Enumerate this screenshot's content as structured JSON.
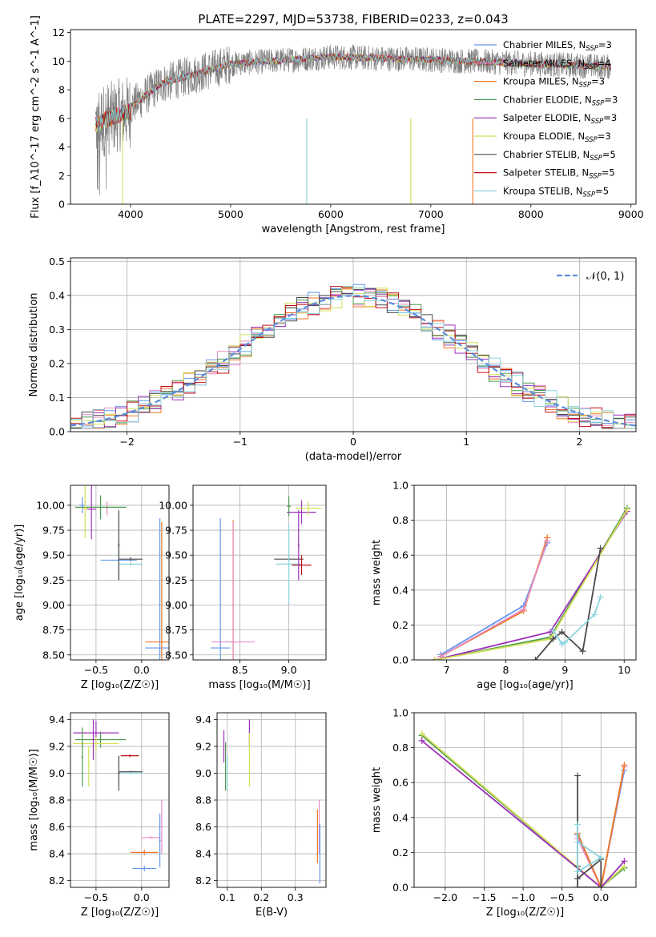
{
  "colors": {
    "chabrier_miles": "#6495ed",
    "salpeter_miles": "#e58cc4",
    "kroupa_miles": "#ee7623",
    "chabrier_elodie": "#4e9a4e",
    "salpeter_elodie": "#9b30b8",
    "kroupa_elodie": "#d4e157",
    "chabrier_stelib": "#4a4a4a",
    "salpeter_stelib": "#c0101a",
    "kroupa_stelib": "#8ad4de",
    "normal": "#5b8ddc"
  },
  "legend_spectrum": [
    {
      "key": "chabrier_miles",
      "label": "Chabrier MILES, N",
      "sub": "SSP",
      "tail": "=3"
    },
    {
      "key": "salpeter_miles",
      "label": "Salpeter MILES, N",
      "sub": "SSP",
      "tail": "=4"
    },
    {
      "key": "kroupa_miles",
      "label": "Kroupa MILES, N",
      "sub": "SSP",
      "tail": "=3"
    },
    {
      "key": "chabrier_elodie",
      "label": "Chabrier ELODIE, N",
      "sub": "SSP",
      "tail": "=3"
    },
    {
      "key": "salpeter_elodie",
      "label": "Salpeter ELODIE, N",
      "sub": "SSP",
      "tail": "=3"
    },
    {
      "key": "kroupa_elodie",
      "label": "Kroupa ELODIE, N",
      "sub": "SSP",
      "tail": "=3"
    },
    {
      "key": "chabrier_stelib",
      "label": "Chabrier STELIB, N",
      "sub": "SSP",
      "tail": "=5"
    },
    {
      "key": "salpeter_stelib",
      "label": "Salpeter STELIB, N",
      "sub": "SSP",
      "tail": "=5"
    },
    {
      "key": "kroupa_stelib",
      "label": "Kroupa STELIB, N",
      "sub": "SSP",
      "tail": "=5"
    }
  ],
  "chart_data": [
    {
      "id": "spectrum",
      "type": "line",
      "title": "PLATE=2297, MJD=53738, FIBERID=0233, z=0.043",
      "xlabel": "wavelength [Angstrom, rest frame]",
      "ylabel": "Flux [f_λ10^-17 erg cm^-2 s^-1 A^-1]",
      "xlim": [
        3400,
        9050
      ],
      "ylim": [
        0,
        12.2
      ],
      "xticks": [
        "4000",
        "5000",
        "6000",
        "7000",
        "8000",
        "9000"
      ],
      "yticks": [
        "0",
        "2",
        "4",
        "6",
        "8",
        "10",
        "12"
      ],
      "data_range": [
        3650,
        8800
      ],
      "grid": false,
      "legend": "right"
    },
    {
      "id": "residual-hist",
      "type": "line",
      "xlabel": "(data-model)/error",
      "ylabel": "Normed distribution",
      "xlim": [
        -2.5,
        2.5
      ],
      "ylim": [
        0,
        0.51
      ],
      "xticks": [
        "−2",
        "−1",
        "0",
        "1",
        "2"
      ],
      "yticks": [
        "0.0",
        "0.1",
        "0.2",
        "0.3",
        "0.4",
        "0.5"
      ],
      "bin_width": 0.1,
      "normal_label": "𝒩(0, 1)",
      "grid": true,
      "legend": "top-right"
    },
    {
      "id": "age-vs-z",
      "type": "scatter",
      "xlabel": "Z [log₁₀(Z/Z☉)]",
      "ylabel": "age [log₁₀(age/yr)]",
      "xlim": [
        -0.78,
        0.3
      ],
      "ylim": [
        8.45,
        10.2
      ],
      "xticks": [
        "−0.5",
        "0.0"
      ],
      "yticks": [
        "8.50",
        "8.75",
        "9.00",
        "9.25",
        "9.50",
        "9.75",
        "10.00"
      ],
      "grid": true,
      "points": [
        {
          "key": "chabrier_miles",
          "x": -0.65,
          "y": 10.0,
          "xerr": 0.03,
          "yerr": 0.08
        },
        {
          "key": "chabrier_miles",
          "x": -0.25,
          "y": 9.45,
          "xerr": 0.2,
          "yerr": 0.2
        },
        {
          "key": "chabrier_miles",
          "x": 0.2,
          "y": 8.57,
          "xerr": 0.16,
          "yerr": 1.3
        },
        {
          "key": "kroupa_miles",
          "x": 0.22,
          "y": 8.63,
          "xerr": 0.18,
          "yerr": 1.2
        },
        {
          "key": "salpeter_miles",
          "x": -0.38,
          "y": 9.97,
          "xerr": 0.01,
          "yerr": 0.07
        },
        {
          "key": "chabrier_elodie",
          "x": -0.45,
          "y": 9.98,
          "xerr": 0.28,
          "yerr": 0.12
        },
        {
          "key": "salpeter_elodie",
          "x": -0.55,
          "y": 9.96,
          "xerr": 0.05,
          "yerr": 0.3
        },
        {
          "key": "kroupa_elodie",
          "x": -0.62,
          "y": 9.97,
          "xerr": 0.03,
          "yerr": 0.3
        },
        {
          "key": "chabrier_stelib",
          "x": -0.12,
          "y": 9.46,
          "xerr": 0.13,
          "yerr": 0.02
        },
        {
          "key": "kroupa_stelib",
          "x": -0.12,
          "y": 9.41,
          "xerr": 0.13,
          "yerr": 0.02
        },
        {
          "key": "chabrier_stelib",
          "x": -0.25,
          "y": 9.6,
          "xerr": 0.01,
          "yerr": 0.35
        }
      ]
    },
    {
      "id": "age-vs-mass",
      "type": "scatter",
      "xlabel": "mass [log₁₀(M/M☉)]",
      "ylabel": "",
      "xlim": [
        8.02,
        9.38
      ],
      "ylim": [
        8.45,
        10.2
      ],
      "xticks": [
        "8.5",
        "9.0"
      ],
      "yticks": [
        "8.50",
        "8.75",
        "9.00",
        "9.25",
        "9.50",
        "9.75",
        "10.00"
      ],
      "grid": true,
      "points": [
        {
          "key": "chabrier_miles",
          "x": 8.3,
          "y": 8.57,
          "xerr": 0.1,
          "yerr": 1.3
        },
        {
          "key": "kroupa_miles",
          "x": 8.43,
          "y": 8.63,
          "xerr": 0.03,
          "yerr": 1.22
        },
        {
          "key": "salpeter_miles",
          "x": 8.43,
          "y": 8.63,
          "xerr": 0.22,
          "yerr": 1.2
        },
        {
          "key": "chabrier_elodie",
          "x": 9.0,
          "y": 9.99,
          "xerr": 0.02,
          "yerr": 0.1
        },
        {
          "key": "salpeter_elodie",
          "x": 9.13,
          "y": 9.93,
          "xerr": 0.15,
          "yerr": 0.12
        },
        {
          "key": "kroupa_elodie",
          "x": 9.2,
          "y": 9.97,
          "xerr": 0.13,
          "yerr": 0.07
        },
        {
          "key": "chabrier_stelib",
          "x": 9.0,
          "y": 9.46,
          "xerr": 0.15,
          "yerr": 0.02
        },
        {
          "key": "kroupa_stelib",
          "x": 9.0,
          "y": 9.41,
          "xerr": 0.13,
          "yerr": 0.4
        },
        {
          "key": "salpeter_stelib",
          "x": 9.13,
          "y": 9.4,
          "xerr": 0.1,
          "yerr": 0.1
        },
        {
          "key": "salpeter_elodie",
          "x": 9.1,
          "y": 9.6,
          "xerr": 0.01,
          "yerr": 0.35
        }
      ]
    },
    {
      "id": "massweight-vs-age",
      "type": "line",
      "xlabel": "age [log₁₀(age/yr)]",
      "ylabel": "mass weight",
      "xlim": [
        6.45,
        10.2
      ],
      "ylim": [
        0,
        1.0
      ],
      "xticks": [
        "7",
        "8",
        "9",
        "10"
      ],
      "yticks": [
        "0.0",
        "0.2",
        "0.4",
        "0.6",
        "0.8",
        "1.0"
      ],
      "grid": true,
      "series": [
        {
          "key": "chabrier_miles",
          "x": [
            6.9,
            8.3,
            8.7
          ],
          "y": [
            0.03,
            0.31,
            0.67
          ]
        },
        {
          "key": "kroupa_miles",
          "x": [
            6.9,
            8.3,
            8.7
          ],
          "y": [
            0.02,
            0.28,
            0.7
          ]
        },
        {
          "key": "salpeter_miles",
          "x": [
            6.9,
            8.3,
            8.7
          ],
          "y": [
            0.02,
            0.29,
            0.68
          ]
        },
        {
          "key": "chabrier_elodie",
          "x": [
            6.8,
            8.75,
            10.05
          ],
          "y": [
            0.0,
            0.13,
            0.87
          ]
        },
        {
          "key": "salpeter_elodie",
          "x": [
            6.8,
            8.75,
            10.05
          ],
          "y": [
            0.0,
            0.16,
            0.85
          ]
        },
        {
          "key": "kroupa_elodie",
          "x": [
            6.8,
            8.75,
            10.05
          ],
          "y": [
            0.0,
            0.12,
            0.86
          ]
        },
        {
          "key": "chabrier_stelib",
          "x": [
            8.5,
            8.8,
            8.95,
            9.3,
            9.6
          ],
          "y": [
            0.0,
            0.12,
            0.16,
            0.05,
            0.64
          ]
        },
        {
          "key": "kroupa_stelib",
          "x": [
            8.8,
            8.95,
            9.0,
            9.5,
            9.6
          ],
          "y": [
            0.17,
            0.09,
            0.1,
            0.26,
            0.36
          ]
        }
      ]
    },
    {
      "id": "mass-vs-z",
      "type": "scatter",
      "xlabel": "Z [log₁₀(Z/Z☉)]",
      "ylabel": "mass [log₁₀(M/M☉)]",
      "xlim": [
        -0.78,
        0.3
      ],
      "ylim": [
        8.15,
        9.45
      ],
      "xticks": [
        "−0.5",
        "0.0"
      ],
      "yticks": [
        "8.2",
        "8.4",
        "8.6",
        "8.8",
        "9.0",
        "9.2",
        "9.4"
      ],
      "grid": true,
      "points": [
        {
          "key": "chabrier_miles",
          "x": 0.03,
          "y": 8.29,
          "xerr": 0.13,
          "yerr": 0.02
        },
        {
          "key": "kroupa_miles",
          "x": 0.03,
          "y": 8.41,
          "xerr": 0.15,
          "yerr": 0.02
        },
        {
          "key": "salpeter_miles",
          "x": 0.1,
          "y": 8.52,
          "xerr": 0.1,
          "yerr": 0.01
        },
        {
          "key": "chabrier_miles",
          "x": 0.2,
          "y": 8.5,
          "xerr": 0.01,
          "yerr": 0.2
        },
        {
          "key": "salpeter_miles",
          "x": 0.22,
          "y": 8.6,
          "xerr": 0.01,
          "yerr": 0.2
        },
        {
          "key": "chabrier_elodie",
          "x": -0.45,
          "y": 9.25,
          "xerr": 0.28,
          "yerr": 0.06
        },
        {
          "key": "salpeter_elodie",
          "x": -0.5,
          "y": 9.3,
          "xerr": 0.25,
          "yerr": 0.09
        },
        {
          "key": "kroupa_elodie",
          "x": -0.5,
          "y": 9.22,
          "xerr": 0.25,
          "yerr": 0.05
        },
        {
          "key": "chabrier_stelib",
          "x": -0.12,
          "y": 9.01,
          "xerr": 0.13,
          "yerr": 0.01
        },
        {
          "key": "kroupa_stelib",
          "x": -0.12,
          "y": 9.0,
          "xerr": 0.13,
          "yerr": 0.01
        },
        {
          "key": "salpeter_stelib",
          "x": -0.13,
          "y": 9.13,
          "xerr": 0.1,
          "yerr": 0.01
        },
        {
          "key": "chabrier_elodie",
          "x": -0.65,
          "y": 9.12,
          "xerr": 0.01,
          "yerr": 0.22
        },
        {
          "key": "kroupa_elodie",
          "x": -0.58,
          "y": 9.05,
          "xerr": 0.01,
          "yerr": 0.15
        },
        {
          "key": "salpeter_elodie",
          "x": -0.53,
          "y": 9.25,
          "xerr": 0.01,
          "yerr": 0.15
        },
        {
          "key": "chabrier_stelib",
          "x": -0.25,
          "y": 9.0,
          "xerr": 0.01,
          "yerr": 0.13
        }
      ]
    },
    {
      "id": "mass-vs-ebv",
      "type": "scatter",
      "xlabel": "E(B-V)",
      "ylabel": "",
      "xlim": [
        0.07,
        0.39
      ],
      "ylim": [
        8.15,
        9.45
      ],
      "xticks": [
        "0.1",
        "0.2",
        "0.3"
      ],
      "yticks": [
        "8.2",
        "8.4",
        "8.6",
        "8.8",
        "9.0",
        "9.2",
        "9.4"
      ],
      "grid": true,
      "points": [
        {
          "key": "salpeter_elodie",
          "x": 0.09,
          "y": 9.2,
          "xerr": 0.001,
          "yerr": 0.12
        },
        {
          "key": "chabrier_elodie",
          "x": 0.095,
          "y": 9.05,
          "xerr": 0.001,
          "yerr": 0.18
        },
        {
          "key": "kroupa_stelib",
          "x": 0.1,
          "y": 9.0,
          "xerr": 0.001,
          "yerr": 0.13
        },
        {
          "key": "salpeter_elodie",
          "x": 0.165,
          "y": 9.3,
          "xerr": 0.001,
          "yerr": 0.1
        },
        {
          "key": "kroupa_elodie",
          "x": 0.165,
          "y": 9.1,
          "xerr": 0.001,
          "yerr": 0.2
        },
        {
          "key": "kroupa_miles",
          "x": 0.365,
          "y": 8.53,
          "xerr": 0.001,
          "yerr": 0.2
        },
        {
          "key": "salpeter_miles",
          "x": 0.37,
          "y": 8.6,
          "xerr": 0.001,
          "yerr": 0.2
        },
        {
          "key": "chabrier_miles",
          "x": 0.372,
          "y": 8.4,
          "xerr": 0.001,
          "yerr": 0.22
        }
      ]
    },
    {
      "id": "massweight-vs-z",
      "type": "line",
      "xlabel": "Z [log₁₀(Z/Z☉)]",
      "ylabel": "mass weight",
      "xlim": [
        -2.4,
        0.45
      ],
      "ylim": [
        0,
        1.0
      ],
      "xticks": [
        "−2.0",
        "−1.5",
        "−1.0",
        "−0.5",
        "0.0"
      ],
      "yticks": [
        "0.0",
        "0.2",
        "0.4",
        "0.6",
        "0.8",
        "1.0"
      ],
      "grid": true,
      "series": [
        {
          "key": "chabrier_elodie",
          "x": [
            -2.3,
            0.0,
            0.3
          ],
          "y": [
            0.87,
            0.0,
            0.11
          ]
        },
        {
          "key": "kroupa_elodie",
          "x": [
            -2.3,
            0.0,
            0.3
          ],
          "y": [
            0.88,
            0.0,
            0.12
          ]
        },
        {
          "key": "salpeter_elodie",
          "x": [
            -2.3,
            0.0,
            0.3
          ],
          "y": [
            0.84,
            0.0,
            0.15
          ]
        },
        {
          "key": "chabrier_miles",
          "x": [
            -0.3,
            0.0,
            0.3
          ],
          "y": [
            0.3,
            0.0,
            0.67
          ]
        },
        {
          "key": "salpeter_miles",
          "x": [
            -0.3,
            0.0,
            0.3
          ],
          "y": [
            0.28,
            0.0,
            0.69
          ]
        },
        {
          "key": "kroupa_miles",
          "x": [
            -0.3,
            0.0,
            0.3
          ],
          "y": [
            0.31,
            0.0,
            0.7
          ]
        },
        {
          "key": "chabrier_stelib",
          "x": [
            -0.3,
            -0.3,
            0.0,
            0.0,
            -0.3,
            -0.3
          ],
          "y": [
            0.64,
            0.05,
            0.16,
            0.0,
            0.0,
            0.12
          ]
        },
        {
          "key": "kroupa_stelib",
          "x": [
            -0.3,
            -0.3,
            0.0,
            -0.3
          ],
          "y": [
            0.36,
            0.09,
            0.17,
            0.26
          ]
        }
      ]
    }
  ]
}
